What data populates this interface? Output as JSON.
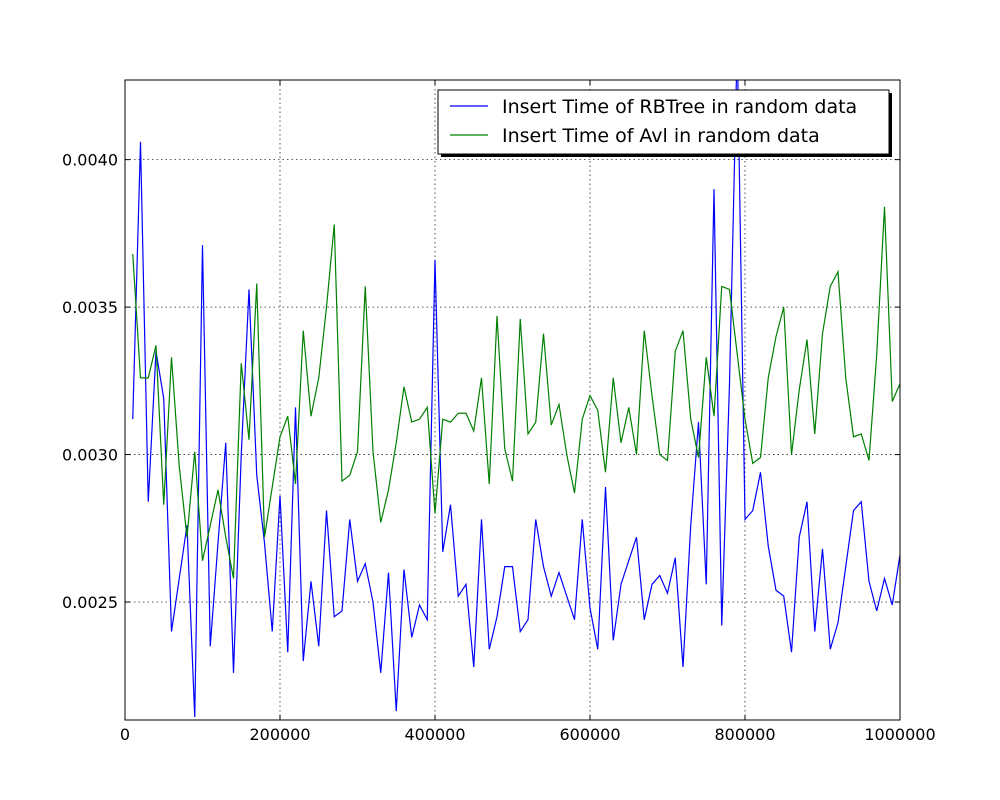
{
  "chart_data": {
    "type": "line",
    "title": "",
    "xlabel": "",
    "ylabel": "",
    "xlim": [
      0,
      1000000
    ],
    "ylim": [
      0.0021,
      0.00427
    ],
    "grid": true,
    "legend_position": "top-right",
    "x_ticks": [
      0,
      200000,
      400000,
      600000,
      800000,
      1000000
    ],
    "x_tick_labels": [
      "0",
      "200000",
      "400000",
      "600000",
      "800000",
      "1000000"
    ],
    "y_ticks": [
      0.0025,
      0.003,
      0.0035,
      0.004
    ],
    "y_tick_labels": [
      "0.0025",
      "0.0030",
      "0.0035",
      "0.0040"
    ],
    "x": [
      10000,
      20000,
      30000,
      40000,
      50000,
      60000,
      70000,
      80000,
      90000,
      100000,
      110000,
      120000,
      130000,
      140000,
      150000,
      160000,
      170000,
      180000,
      190000,
      200000,
      210000,
      220000,
      230000,
      240000,
      250000,
      260000,
      270000,
      280000,
      290000,
      300000,
      310000,
      320000,
      330000,
      340000,
      350000,
      360000,
      370000,
      380000,
      390000,
      400000,
      410000,
      420000,
      430000,
      440000,
      450000,
      460000,
      470000,
      480000,
      490000,
      500000,
      510000,
      520000,
      530000,
      540000,
      550000,
      560000,
      570000,
      580000,
      590000,
      600000,
      610000,
      620000,
      630000,
      640000,
      650000,
      660000,
      670000,
      680000,
      690000,
      700000,
      710000,
      720000,
      730000,
      740000,
      750000,
      760000,
      770000,
      780000,
      790000,
      800000,
      810000,
      820000,
      830000,
      840000,
      850000,
      860000,
      870000,
      880000,
      890000,
      900000,
      910000,
      920000,
      930000,
      940000,
      950000,
      960000,
      970000,
      980000,
      990000,
      1000000
    ],
    "series": [
      {
        "name": "Insert Time of RBTree in random data",
        "color": "#0000ff",
        "values": [
          0.00312,
          0.00406,
          0.00284,
          0.00335,
          0.00319,
          0.0024,
          0.00258,
          0.00276,
          0.00211,
          0.00371,
          0.00235,
          0.0027,
          0.00304,
          0.00226,
          0.003,
          0.00356,
          0.00293,
          0.0027,
          0.0024,
          0.00286,
          0.00233,
          0.00316,
          0.0023,
          0.00257,
          0.00235,
          0.00281,
          0.00245,
          0.00247,
          0.00278,
          0.00257,
          0.00263,
          0.0025,
          0.00226,
          0.0026,
          0.00213,
          0.00261,
          0.00238,
          0.00249,
          0.00244,
          0.00366,
          0.00267,
          0.00283,
          0.00252,
          0.00256,
          0.00228,
          0.00278,
          0.00234,
          0.00245,
          0.00262,
          0.00262,
          0.0024,
          0.00244,
          0.00278,
          0.00262,
          0.00252,
          0.0026,
          0.00252,
          0.00244,
          0.00278,
          0.00248,
          0.00234,
          0.00289,
          0.00237,
          0.00256,
          0.00264,
          0.00272,
          0.00244,
          0.00256,
          0.00259,
          0.00253,
          0.00265,
          0.00228,
          0.00276,
          0.00311,
          0.00256,
          0.0039,
          0.00242,
          0.00324,
          0.0044,
          0.00278,
          0.00281,
          0.00294,
          0.00269,
          0.00254,
          0.00252,
          0.00233,
          0.00272,
          0.00284,
          0.0024,
          0.00268,
          0.00234,
          0.00243,
          0.00262,
          0.00281,
          0.00284,
          0.00257,
          0.00247,
          0.00258,
          0.00249,
          0.00266
        ]
      },
      {
        "name": "Insert Time of Avl in random data",
        "color": "#008000",
        "values": [
          0.00368,
          0.00326,
          0.00326,
          0.00337,
          0.00283,
          0.00333,
          0.00296,
          0.00272,
          0.00301,
          0.00264,
          0.00276,
          0.00288,
          0.00272,
          0.00258,
          0.00331,
          0.00305,
          0.00358,
          0.00272,
          0.00289,
          0.00306,
          0.00313,
          0.0029,
          0.00342,
          0.00313,
          0.00326,
          0.0035,
          0.00378,
          0.00291,
          0.00293,
          0.00301,
          0.00357,
          0.00301,
          0.00277,
          0.00288,
          0.00304,
          0.00323,
          0.00311,
          0.00312,
          0.00316,
          0.0028,
          0.00312,
          0.00311,
          0.00314,
          0.00314,
          0.00308,
          0.00326,
          0.0029,
          0.00347,
          0.00302,
          0.00291,
          0.00346,
          0.00307,
          0.00311,
          0.00341,
          0.0031,
          0.00317,
          0.003,
          0.00287,
          0.00312,
          0.0032,
          0.00315,
          0.00294,
          0.00326,
          0.00304,
          0.00316,
          0.003,
          0.00342,
          0.0032,
          0.003,
          0.00298,
          0.00335,
          0.00342,
          0.00312,
          0.00299,
          0.00333,
          0.00313,
          0.00357,
          0.00356,
          0.00334,
          0.00312,
          0.00297,
          0.00299,
          0.00326,
          0.0034,
          0.0035,
          0.003,
          0.00322,
          0.00339,
          0.00307,
          0.00341,
          0.00357,
          0.00362,
          0.00326,
          0.00306,
          0.00307,
          0.00298,
          0.00334,
          0.00384,
          0.00318,
          0.00324
        ]
      }
    ]
  }
}
